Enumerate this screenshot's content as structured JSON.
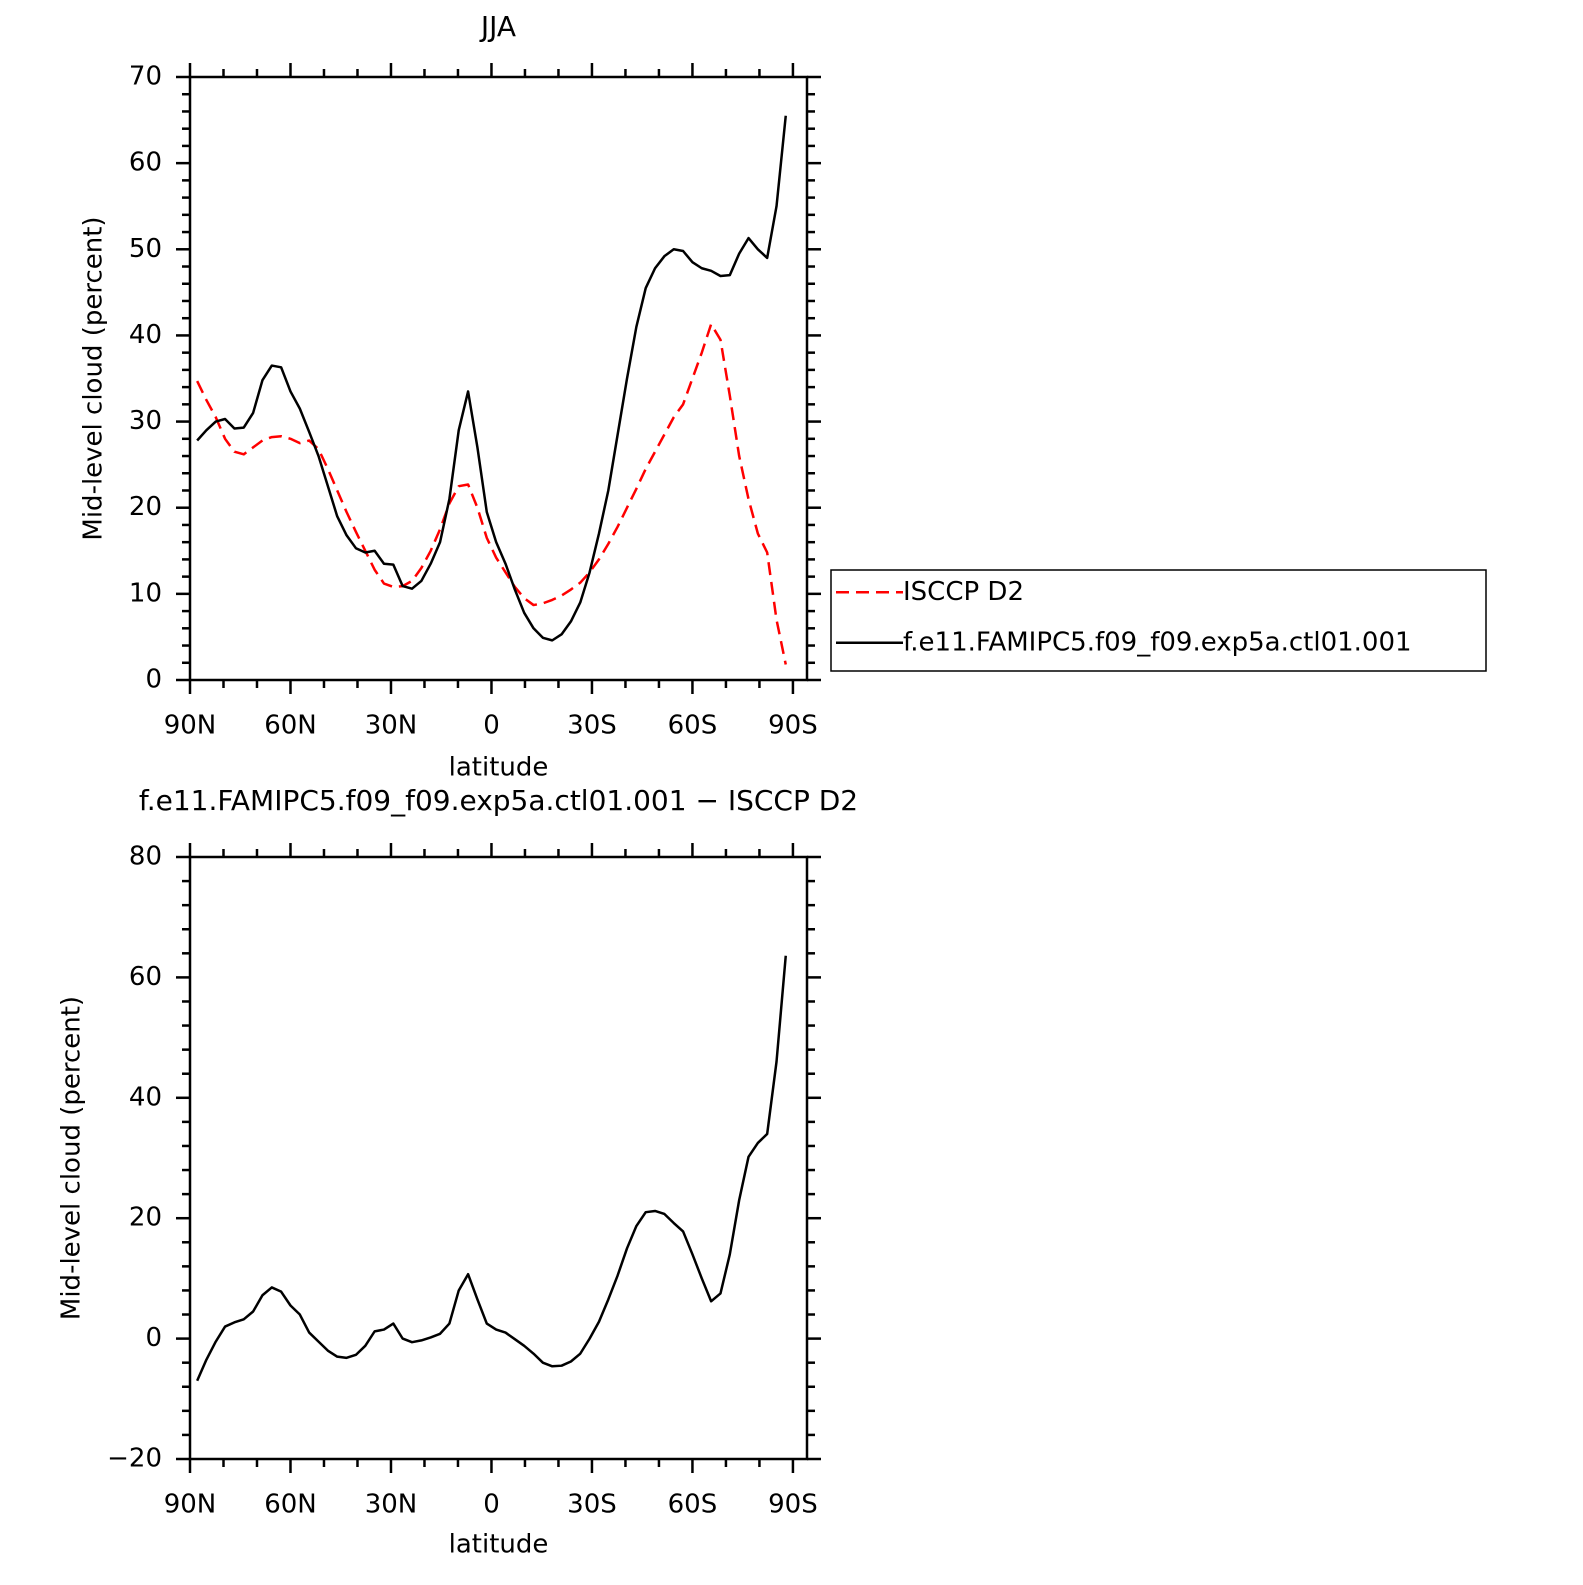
{
  "chart_data": [
    {
      "type": "line",
      "title": "JJA",
      "xlabel": "latitude",
      "ylabel": "Mid-level cloud (percent)",
      "x": [
        87.86,
        85.1,
        82.31,
        79.53,
        76.74,
        73.95,
        71.16,
        68.37,
        65.58,
        62.79,
        60.0,
        57.21,
        54.42,
        51.63,
        48.84,
        46.05,
        43.26,
        40.47,
        37.67,
        34.88,
        32.09,
        29.3,
        26.51,
        23.72,
        20.93,
        18.14,
        15.35,
        12.56,
        9.77,
        6.98,
        4.19,
        1.4,
        -1.4,
        -4.19,
        -6.98,
        -9.77,
        -12.56,
        -15.35,
        -18.14,
        -20.93,
        -23.72,
        -26.51,
        -29.3,
        -32.09,
        -34.88,
        -37.67,
        -40.47,
        -43.26,
        -46.05,
        -48.84,
        -51.63,
        -54.42,
        -57.21,
        -60.0,
        -62.79,
        -65.58,
        -68.37,
        -71.16,
        -73.95,
        -76.74,
        -79.53,
        -82.31,
        -85.1,
        -87.86
      ],
      "series": [
        {
          "name": "ISCCP D2",
          "color": "#ff0000",
          "style": "dashed",
          "values": [
            34.7,
            32.5,
            30.5,
            28,
            26.5,
            26.2,
            27,
            27.8,
            28.2,
            28.3,
            28,
            27.5,
            27.8,
            26.8,
            24.5,
            22,
            19.5,
            17.2,
            15,
            12.8,
            11.2,
            10.8,
            10.9,
            11.5,
            13,
            15,
            17.5,
            20.5,
            22.5,
            22.7,
            20,
            16.5,
            14.2,
            12.5,
            10.8,
            9.5,
            8.7,
            8.9,
            9.3,
            9.8,
            10.5,
            11.3,
            12.5,
            14,
            15.8,
            17.8,
            20,
            22.2,
            24.5,
            26.5,
            28.5,
            30.5,
            32,
            35,
            38,
            41.3,
            39.5,
            33,
            26,
            21,
            17,
            14.8,
            7,
            1.8
          ]
        },
        {
          "name": "f.e11.FAMIPC5.f09_f09.exp5a.ctl01.001",
          "color": "#000000",
          "style": "solid",
          "values": [
            27.8,
            29,
            30,
            30.3,
            29.2,
            29.3,
            31,
            34.8,
            36.5,
            36.3,
            33.5,
            31.5,
            28.8,
            26,
            22.5,
            19,
            16.8,
            15.3,
            14.8,
            15,
            13.5,
            13.4,
            10.9,
            10.6,
            11.5,
            13.5,
            16,
            21,
            29,
            33.5,
            27,
            19.5,
            16,
            13.5,
            10.5,
            7.8,
            6,
            4.9,
            4.6,
            5.3,
            6.8,
            9,
            12.5,
            17,
            22,
            28.5,
            35,
            41,
            45.5,
            47.8,
            49.2,
            50,
            49.8,
            48.5,
            47.8,
            47.5,
            46.9,
            47,
            49.5,
            51.3,
            50,
            49,
            55,
            65.5
          ]
        }
      ],
      "xlim": [
        90,
        -94.2
      ],
      "xticks": [
        {
          "value": 90,
          "label": "90N"
        },
        {
          "value": 60,
          "label": "60N"
        },
        {
          "value": 30,
          "label": "30N"
        },
        0,
        {
          "value": -30,
          "label": "30S"
        },
        {
          "value": -60,
          "label": "60S"
        },
        {
          "value": -90,
          "label": "90S"
        }
      ],
      "xminor_step": 10,
      "ylim": [
        0,
        70
      ],
      "yticks": [
        0,
        10,
        20,
        30,
        40,
        50,
        60,
        70
      ],
      "yminor_step": 2,
      "legend": "outside-right"
    },
    {
      "type": "line",
      "title": "f.e11.FAMIPC5.f09_f09.exp5a.ctl01.001 − ISCCP D2",
      "xlabel": "latitude",
      "ylabel": "Mid-level cloud (percent)",
      "x": [
        87.86,
        85.1,
        82.31,
        79.53,
        76.74,
        73.95,
        71.16,
        68.37,
        65.58,
        62.79,
        60.0,
        57.21,
        54.42,
        51.63,
        48.84,
        46.05,
        43.26,
        40.47,
        37.67,
        34.88,
        32.09,
        29.3,
        26.51,
        23.72,
        20.93,
        18.14,
        15.35,
        12.56,
        9.77,
        6.98,
        4.19,
        1.4,
        -1.4,
        -4.19,
        -6.98,
        -9.77,
        -12.56,
        -15.35,
        -18.14,
        -20.93,
        -23.72,
        -26.51,
        -29.3,
        -32.09,
        -34.88,
        -37.67,
        -40.47,
        -43.26,
        -46.05,
        -48.84,
        -51.63,
        -54.42,
        -57.21,
        -60.0,
        -62.79,
        -65.58,
        -68.37,
        -71.16,
        -73.95,
        -76.74,
        -79.53,
        -82.31,
        -85.1,
        -87.86
      ],
      "series": [
        {
          "color": "#000000",
          "style": "solid",
          "values": [
            -7,
            -3.5,
            -0.5,
            2,
            2.7,
            3.2,
            4.5,
            7.2,
            8.5,
            7.8,
            5.5,
            4,
            1,
            -0.5,
            -2,
            -3,
            -3.2,
            -2.7,
            -1.2,
            1.2,
            1.5,
            2.5,
            0,
            -0.6,
            -0.3,
            0.2,
            0.8,
            2.5,
            8,
            10.7,
            6.5,
            2.5,
            1.5,
            1,
            -0.1,
            -1.2,
            -2.5,
            -4,
            -4.6,
            -4.5,
            -3.8,
            -2.5,
            0,
            2.8,
            6.5,
            10.5,
            15,
            18.7,
            21,
            21.2,
            20.7,
            19.2,
            17.8,
            14,
            10,
            6.2,
            7.5,
            14,
            23,
            30.2,
            32.5,
            34,
            46,
            63.6
          ]
        }
      ],
      "xlim": [
        90,
        -94.2
      ],
      "xticks": [
        {
          "value": 90,
          "label": "90N"
        },
        {
          "value": 60,
          "label": "60N"
        },
        {
          "value": 30,
          "label": "30N"
        },
        0,
        {
          "value": -30,
          "label": "30S"
        },
        {
          "value": -60,
          "label": "60S"
        },
        {
          "value": -90,
          "label": "90S"
        }
      ],
      "xminor_step": 10,
      "ylim": [
        -20,
        80
      ],
      "yticks": [
        {
          "value": -20,
          "label": "−20"
        },
        0,
        20,
        40,
        60,
        80
      ],
      "yminor_step": 4
    }
  ]
}
